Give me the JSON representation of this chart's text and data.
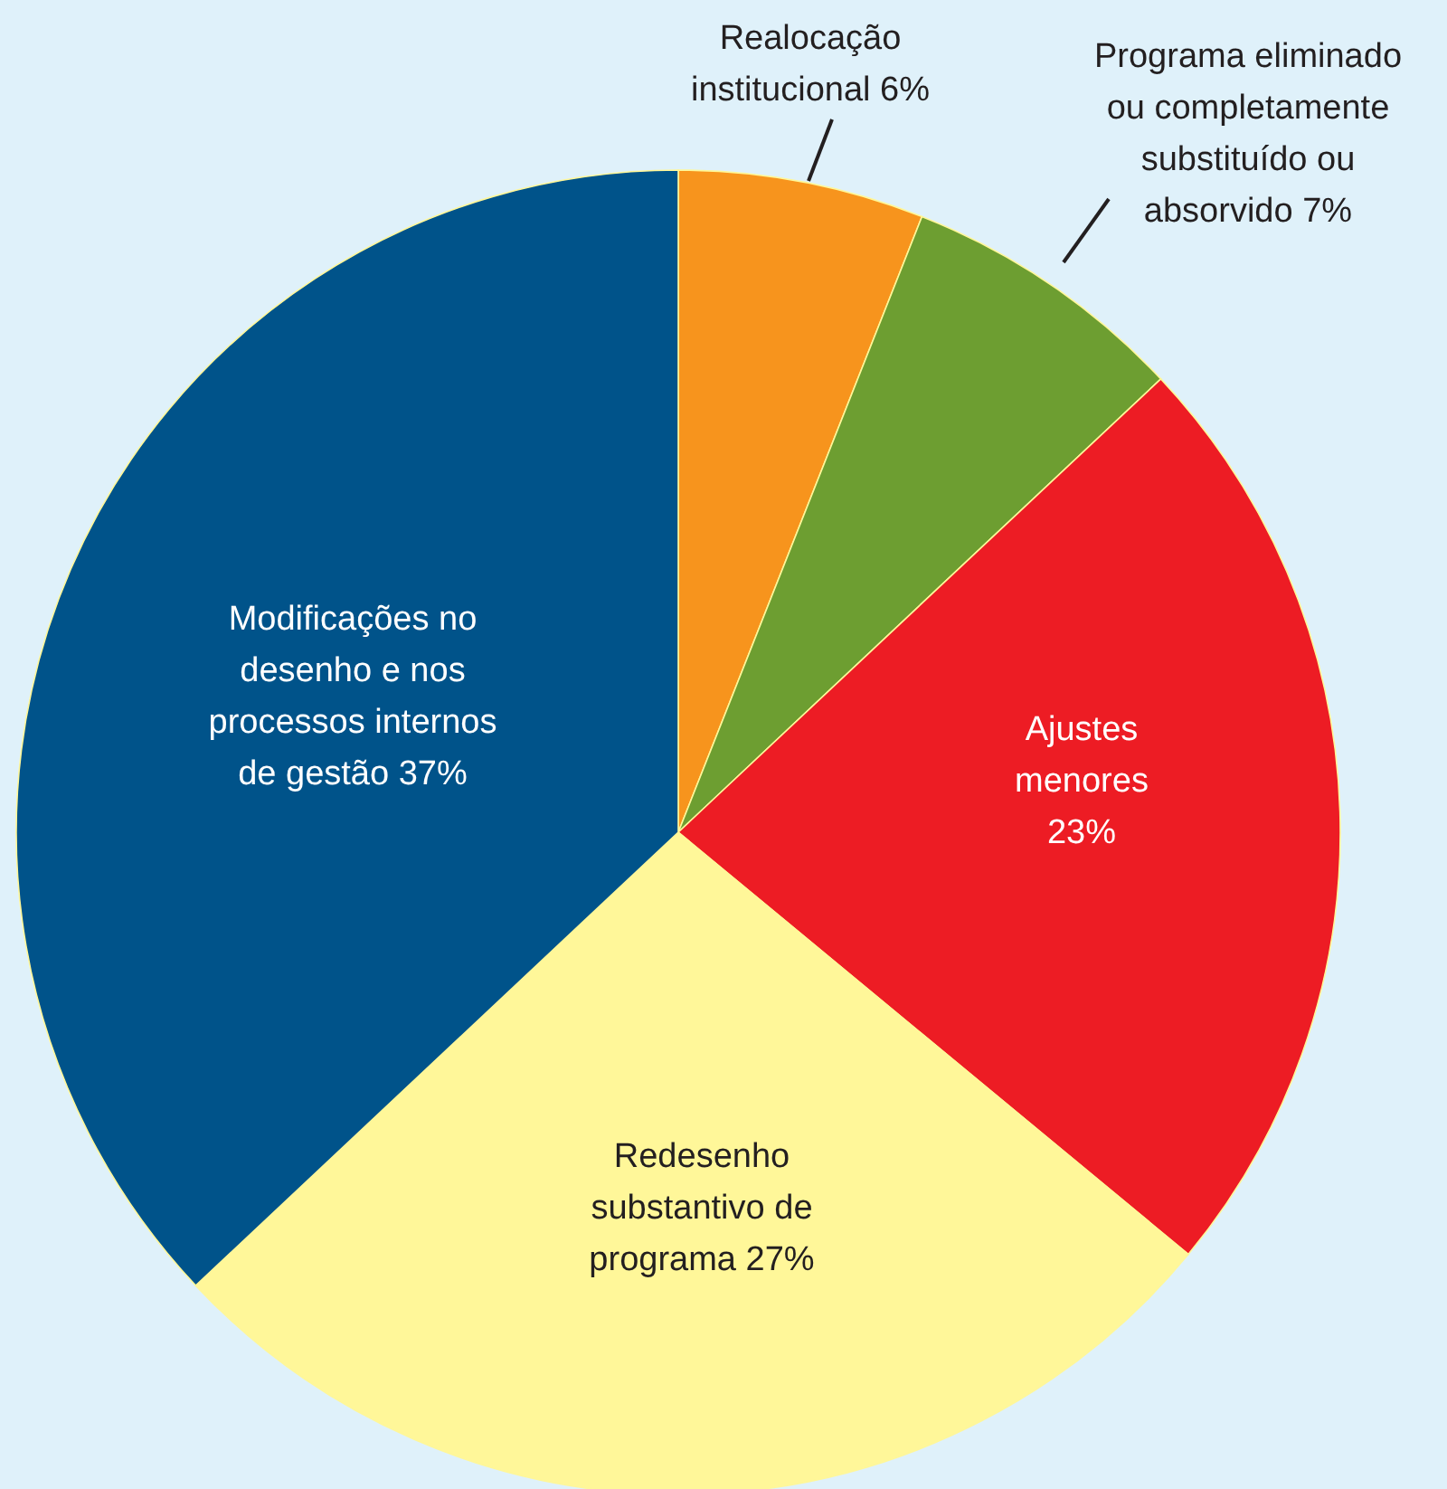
{
  "chart_data": {
    "type": "pie",
    "categories": [
      "Realocação institucional",
      "Programa eliminado ou completamente substituído ou absorvido",
      "Ajustes menores",
      "Redesenho substantivo de programa",
      "Modificações no desenho e nos processos internos de gestão"
    ],
    "values": [
      6,
      7,
      23,
      27,
      37
    ],
    "colors": [
      "#f7941d",
      "#6d9e31",
      "#ed1c24",
      "#fff799",
      "#00538a"
    ],
    "value_labels": [
      "6%",
      "7%",
      "23%",
      "27%",
      "37%"
    ]
  }
}
